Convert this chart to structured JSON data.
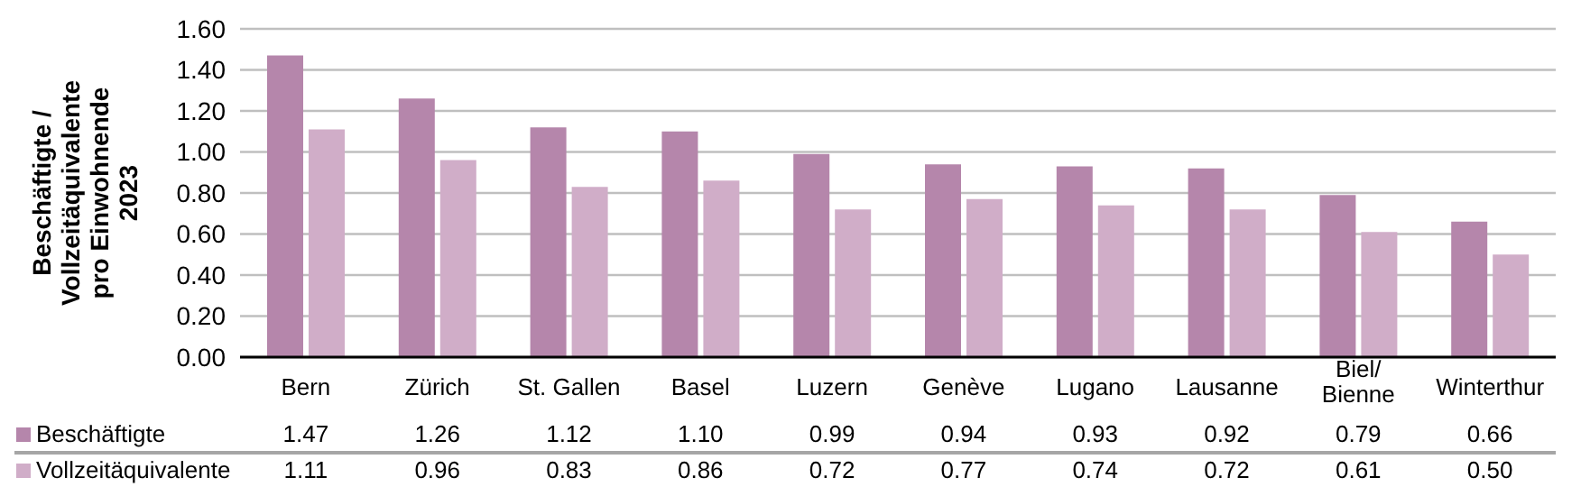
{
  "chart_data": {
    "type": "bar",
    "ylabel": "Beschäftigte /\nVollzeitäquivalente\npro Einwohnende\n2023",
    "categories": [
      "Bern",
      "Zürich",
      "St. Gallen",
      "Basel",
      "Luzern",
      "Genève",
      "Lugano",
      "Lausanne",
      "Biel/\nBienne",
      "Winterthur"
    ],
    "series": [
      {
        "name": "Beschäftigte",
        "color": "#b586ab",
        "values": [
          1.47,
          1.26,
          1.12,
          1.1,
          0.99,
          0.94,
          0.93,
          0.92,
          0.79,
          0.66
        ],
        "value_labels": [
          "1.47",
          "1.26",
          "1.12",
          "1.10",
          "0.99",
          "0.94",
          "0.93",
          "0.92",
          "0.79",
          "0.66"
        ]
      },
      {
        "name": "Vollzeitäquivalente",
        "color": "#d0adc8",
        "values": [
          1.11,
          0.96,
          0.83,
          0.86,
          0.72,
          0.77,
          0.74,
          0.72,
          0.61,
          0.5
        ],
        "value_labels": [
          "1.11",
          "0.96",
          "0.83",
          "0.86",
          "0.72",
          "0.77",
          "0.74",
          "0.72",
          "0.61",
          "0.50"
        ]
      }
    ],
    "ylim": [
      0,
      1.6
    ],
    "yticks": [
      {
        "value": 0,
        "label": "0.00"
      },
      {
        "value": 0.2,
        "label": "0.20"
      },
      {
        "value": 0.4,
        "label": "0.40"
      },
      {
        "value": 0.6,
        "label": "0.60"
      },
      {
        "value": 0.8,
        "label": "0.80"
      },
      {
        "value": 1.0,
        "label": "1.00"
      },
      {
        "value": 1.2,
        "label": "1.20"
      },
      {
        "value": 1.4,
        "label": "1.40"
      },
      {
        "value": 1.6,
        "label": "1.60"
      }
    ],
    "grid": "y",
    "legend": "bottom"
  }
}
